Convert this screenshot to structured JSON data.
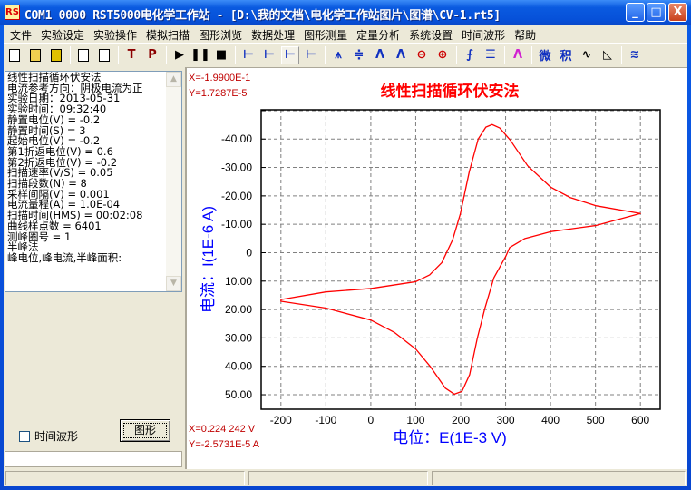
{
  "window": {
    "title": "COM1 0000 RST5000电化学工作站 - [D:\\我的文档\\电化学工作站图片\\图谱\\CV-1.rt5]",
    "app_icon": "RST-logo-icon",
    "minimize": "_",
    "maximize": "□",
    "close": "X"
  },
  "menu": [
    "文件",
    "实验设定",
    "实验操作",
    "模拟扫描",
    "图形浏览",
    "数据处理",
    "图形测量",
    "定量分析",
    "系统设置",
    "时间波形",
    "帮助"
  ],
  "toolbar": [
    {
      "icon": "new-file-icon"
    },
    {
      "icon": "open-folder-icon"
    },
    {
      "icon": "save-disk-icon"
    },
    null,
    {
      "icon": "copy-icon"
    },
    {
      "icon": "print-icon"
    },
    null,
    {
      "icon": "T-icon",
      "glyph": "T",
      "color": "#8b0000"
    },
    {
      "icon": "P-icon",
      "glyph": "P",
      "color": "#8b0000"
    },
    null,
    {
      "icon": "play-icon",
      "glyph": "▶"
    },
    {
      "icon": "pause-icon",
      "glyph": "❚❚"
    },
    {
      "icon": "stop-icon",
      "glyph": "■"
    },
    null,
    {
      "icon": "axis-1-icon",
      "glyph": "⊢"
    },
    {
      "icon": "axis-2-icon",
      "glyph": "⊢"
    },
    {
      "icon": "axis-3-icon",
      "glyph": "⊢",
      "active": true
    },
    {
      "icon": "axis-4-icon",
      "glyph": "⊢"
    },
    null,
    {
      "icon": "peak-vertical-scale-icon",
      "glyph": "⩚"
    },
    {
      "icon": "peak-compress-icon",
      "glyph": "≑"
    },
    {
      "icon": "peak-box-icon",
      "glyph": "Λ"
    },
    {
      "icon": "peak-box-2-icon",
      "glyph": "Λ"
    },
    {
      "icon": "zoom-out-icon",
      "glyph": "⊖"
    },
    {
      "icon": "zoom-in-icon",
      "glyph": "⊕"
    },
    null,
    {
      "icon": "curve-cursor-icon",
      "glyph": "⨍"
    },
    {
      "icon": "data-table-icon",
      "glyph": "☰"
    },
    null,
    {
      "icon": "multi-peak-icon",
      "glyph": "Λ"
    },
    null,
    {
      "icon": "differentiate-icon",
      "glyph": "微"
    },
    {
      "icon": "integrate-icon",
      "glyph": "积"
    },
    {
      "icon": "smooth-icon",
      "glyph": "∿"
    },
    {
      "icon": "measure-icon",
      "glyph": "◺"
    },
    null,
    {
      "icon": "settings-icon",
      "glyph": "≋"
    }
  ],
  "info": {
    "lines": [
      "线性扫描循环伏安法",
      "电流参考方向：阴极电流为正",
      "实验日期：2013-05-31",
      "实验时间：09:32:40",
      "静置电位(V) = -0.2",
      "静置时间(S) = 3",
      "起始电位(V) = -0.2",
      "第1折返电位(V) = 0.6",
      "第2折返电位(V) = -0.2",
      "扫描速率(V/S) = 0.05",
      "扫描段数(N) = 8",
      "采样间隔(V) = 0.001",
      "电流量程(A) = 1.0E-04",
      "扫描时间(HMS) = 00:02:08",
      "曲线样点数 = 6401",
      "测峰圈号 = 1",
      "半峰法",
      "峰电位,峰电流,半峰面积:"
    ]
  },
  "time_waveform_checkbox": {
    "label": "时间波形",
    "checked": false
  },
  "graph_button": "图形",
  "bottom_input": "",
  "cursor_top": {
    "x": "X=-1.9900E-1",
    "y": "Y=1.7287E-5"
  },
  "cursor_bottom": {
    "x": "X=0.224 242 V",
    "y": "Y=-2.5731E-5 A"
  },
  "chart_data": {
    "type": "line",
    "title": "线性扫描循环伏安法",
    "xlabel": "电位：E(1E-3 V)",
    "ylabel": "电流：I(1E-6 A)",
    "xlim": [
      -244,
      644
    ],
    "ylim": [
      -50.3,
      55.1
    ],
    "y_inverted": true,
    "grid": true,
    "x_ticks": [
      -200,
      -100,
      0,
      100,
      200,
      300,
      400,
      500,
      600
    ],
    "y_ticks": [
      -50,
      -40,
      -30,
      -20,
      -10,
      0,
      10,
      20,
      30,
      40,
      50
    ],
    "x_tick_labels": [
      "-200",
      "-100",
      "0",
      "100",
      "200",
      "300",
      "400",
      "500",
      "600"
    ],
    "y_tick_labels": [
      "",
      "-40.00",
      "-30.00",
      "-20.00",
      "-10.00",
      "0",
      "10.00",
      "20.00",
      "30.00",
      "40.00",
      "50.00"
    ],
    "series": [
      {
        "color": "#ff0000",
        "points": [
          [
            -200,
            16.5
          ],
          [
            -100,
            13.8
          ],
          [
            0,
            12.6
          ],
          [
            100,
            10.2
          ],
          [
            131,
            7.8
          ],
          [
            158,
            3.5
          ],
          [
            182,
            -4.5
          ],
          [
            199,
            -13.5
          ],
          [
            219,
            -28.4
          ],
          [
            239,
            -40
          ],
          [
            256,
            -44.2
          ],
          [
            270,
            -45.1
          ],
          [
            287,
            -43.9
          ],
          [
            311,
            -39.5
          ],
          [
            349,
            -30.6
          ],
          [
            400,
            -23.1
          ],
          [
            444,
            -19.4
          ],
          [
            502,
            -16.5
          ],
          [
            600,
            -13.8
          ],
          [
            502,
            -9.6
          ],
          [
            400,
            -7.4
          ],
          [
            343,
            -5
          ],
          [
            309,
            -1.8
          ],
          [
            300,
            1.4
          ],
          [
            274,
            8.8
          ],
          [
            254,
            19.5
          ],
          [
            237,
            30.1
          ],
          [
            220,
            42.9
          ],
          [
            203,
            48.8
          ],
          [
            186,
            49.8
          ],
          [
            166,
            47.7
          ],
          [
            133,
            40.2
          ],
          [
            100,
            33.9
          ],
          [
            52,
            28
          ],
          [
            0,
            23.7
          ],
          [
            -100,
            19.5
          ],
          [
            -200,
            17.1
          ],
          [
            -200,
            16.5
          ]
        ]
      }
    ],
    "colors": {
      "title": "#ff0000",
      "axis_labels": "#0000ff",
      "cursor_text": "#c00000",
      "grid": "#808080"
    }
  },
  "status": [
    "",
    "",
    ""
  ]
}
